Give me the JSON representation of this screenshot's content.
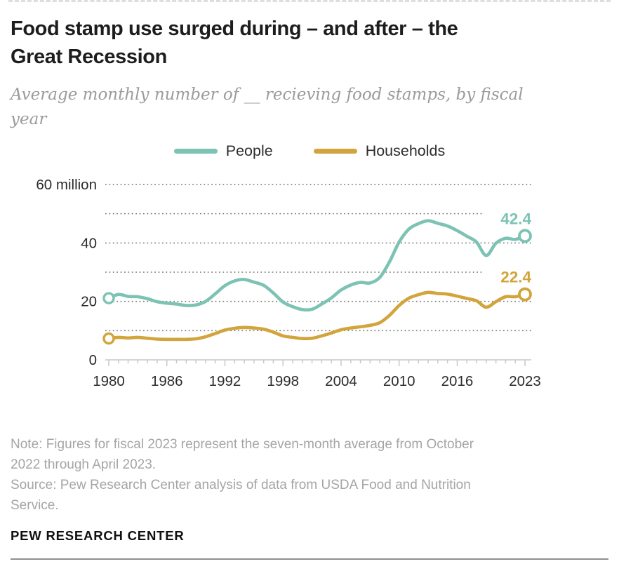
{
  "header": {
    "title": "Food stamp use surged during – and after – the\nGreat Recession",
    "subtitle": "Average monthly number of __ recieving food stamps, by fiscal\nyear"
  },
  "legend": {
    "items": [
      {
        "label": "People",
        "color": "#7cc3b4"
      },
      {
        "label": "Households",
        "color": "#d2a53c"
      }
    ]
  },
  "chart_data": {
    "type": "line",
    "title": "Food stamp use surged during – and after – the Great Recession",
    "subtitle": "Average monthly number of __ recieving food stamps, by fiscal year",
    "xlabel": "",
    "ylabel": "",
    "ylim": [
      0,
      60
    ],
    "grid": "dotted horizontal",
    "legend_position": "top",
    "x_years": [
      1980,
      1981,
      1982,
      1983,
      1984,
      1985,
      1986,
      1987,
      1988,
      1989,
      1990,
      1991,
      1992,
      1993,
      1994,
      1995,
      1996,
      1997,
      1998,
      1999,
      2000,
      2001,
      2002,
      2003,
      2004,
      2005,
      2006,
      2007,
      2008,
      2009,
      2010,
      2011,
      2012,
      2013,
      2014,
      2015,
      2016,
      2017,
      2018,
      2019,
      2020,
      2021,
      2022,
      2023
    ],
    "series": [
      {
        "name": "People",
        "color": "#7cc3b4",
        "end_label": "42.4",
        "values": [
          21.1,
          22.4,
          21.7,
          21.6,
          20.9,
          19.9,
          19.4,
          19.1,
          18.6,
          18.8,
          20.0,
          22.6,
          25.4,
          27.0,
          27.5,
          26.6,
          25.5,
          22.9,
          19.8,
          18.2,
          17.2,
          17.3,
          19.1,
          21.2,
          23.9,
          25.6,
          26.5,
          26.3,
          28.2,
          33.5,
          40.3,
          44.7,
          46.6,
          47.6,
          46.7,
          45.8,
          44.2,
          42.3,
          40.3,
          35.7,
          39.9,
          41.6,
          41.2,
          42.4
        ]
      },
      {
        "name": "Households",
        "color": "#d2a53c",
        "end_label": "22.4",
        "values": [
          7.3,
          7.7,
          7.5,
          7.7,
          7.4,
          7.1,
          7.0,
          7.0,
          7.0,
          7.2,
          7.9,
          9.0,
          10.2,
          10.8,
          11.1,
          10.9,
          10.5,
          9.5,
          8.2,
          7.7,
          7.3,
          7.4,
          8.2,
          9.2,
          10.3,
          10.9,
          11.3,
          11.8,
          12.7,
          15.2,
          18.6,
          21.1,
          22.3,
          23.1,
          22.7,
          22.5,
          21.8,
          21.0,
          20.2,
          18.0,
          19.9,
          21.6,
          21.6,
          22.4
        ]
      }
    ],
    "yticks": [
      {
        "value": 60,
        "label": "60 million"
      },
      {
        "value": 40,
        "label": "40"
      },
      {
        "value": 20,
        "label": "20"
      },
      {
        "value": 0,
        "label": "0"
      }
    ],
    "gridlines": [
      10,
      20,
      30,
      40,
      50,
      60
    ],
    "gridlines_short": [
      30,
      50
    ],
    "xticks": [
      1980,
      1986,
      1992,
      1998,
      2004,
      2010,
      2016,
      2023
    ]
  },
  "footer": {
    "note": "Note: Figures for fiscal 2023 represent the seven-month average from October\n2022 through April 2023.",
    "source": "Source: Pew Research Center analysis of data from USDA Food and Nutrition\nService.",
    "brand": "PEW RESEARCH CENTER"
  }
}
